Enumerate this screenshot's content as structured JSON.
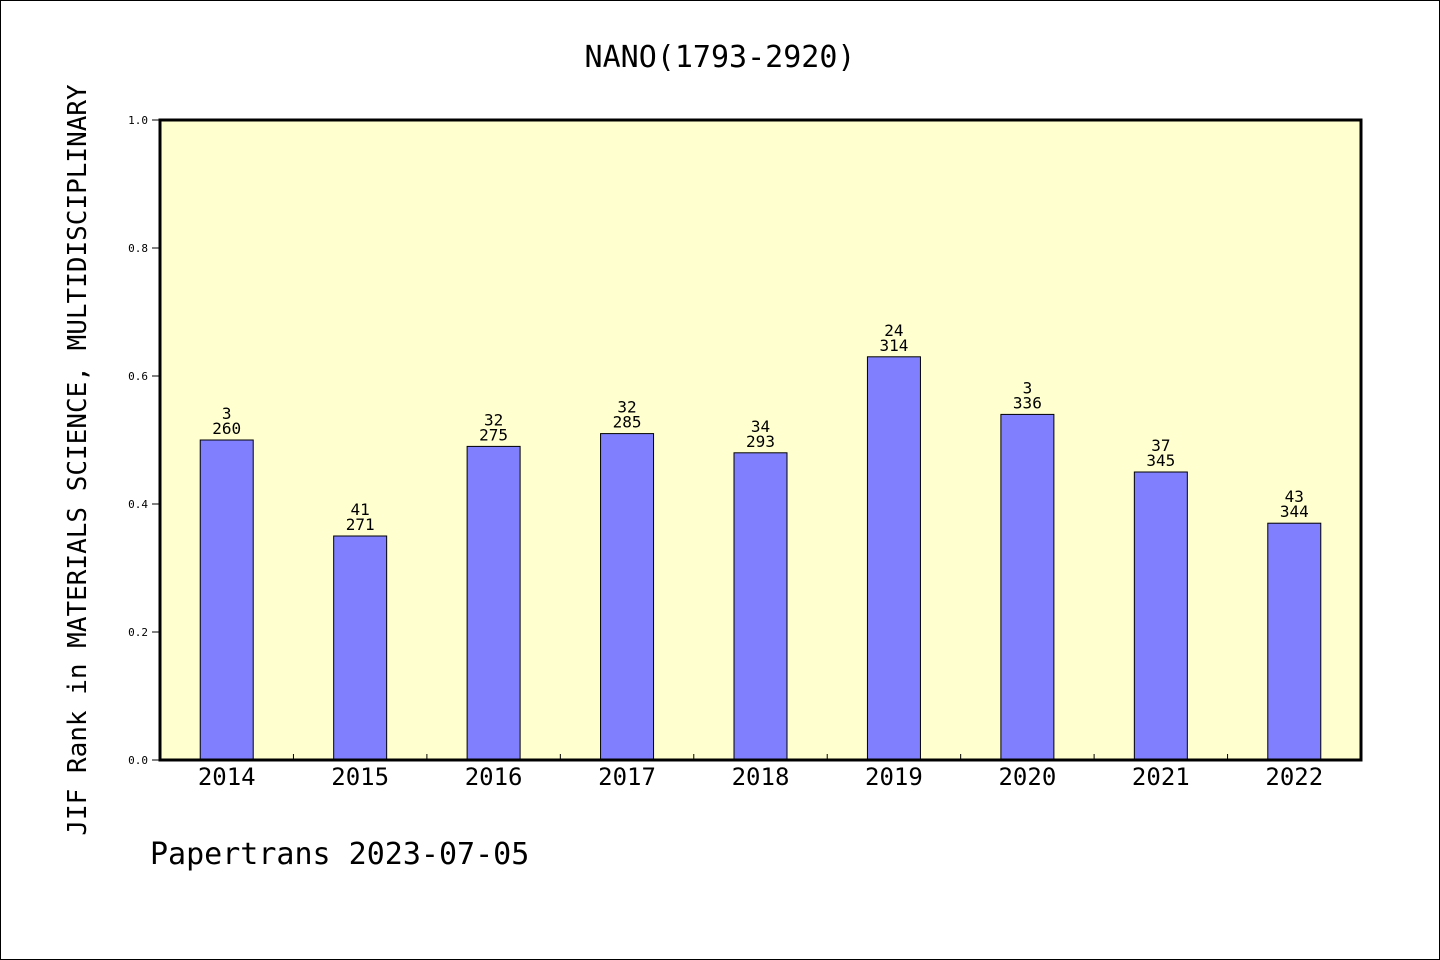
{
  "chart_data": {
    "type": "bar",
    "title": "NANO(1793-2920)",
    "xlabel": "",
    "ylabel": "JIF Rank in MATERIALS SCIENCE, MULTIDISCIPLINARY",
    "categories": [
      "2014",
      "2015",
      "2016",
      "2017",
      "2018",
      "2019",
      "2020",
      "2021",
      "2022"
    ],
    "values": [
      0.5,
      0.35,
      0.49,
      0.51,
      0.48,
      0.63,
      0.54,
      0.45,
      0.37
    ],
    "labels_top": [
      "3",
      "41",
      "32",
      "32",
      "34",
      "24",
      "3",
      "37",
      "43"
    ],
    "labels_bottom": [
      "260",
      "271",
      "275",
      "285",
      "293",
      "314",
      "336",
      "345",
      "344"
    ],
    "ylim": [
      0,
      1.0
    ],
    "yticks": [
      "0.0",
      "0.2",
      "0.4",
      "0.6",
      "0.8",
      "1.0"
    ],
    "grid": false,
    "colors": {
      "bar": "#8080ff",
      "plot_background": "#ffffd0"
    }
  },
  "footer": "Papertrans 2023-07-05"
}
